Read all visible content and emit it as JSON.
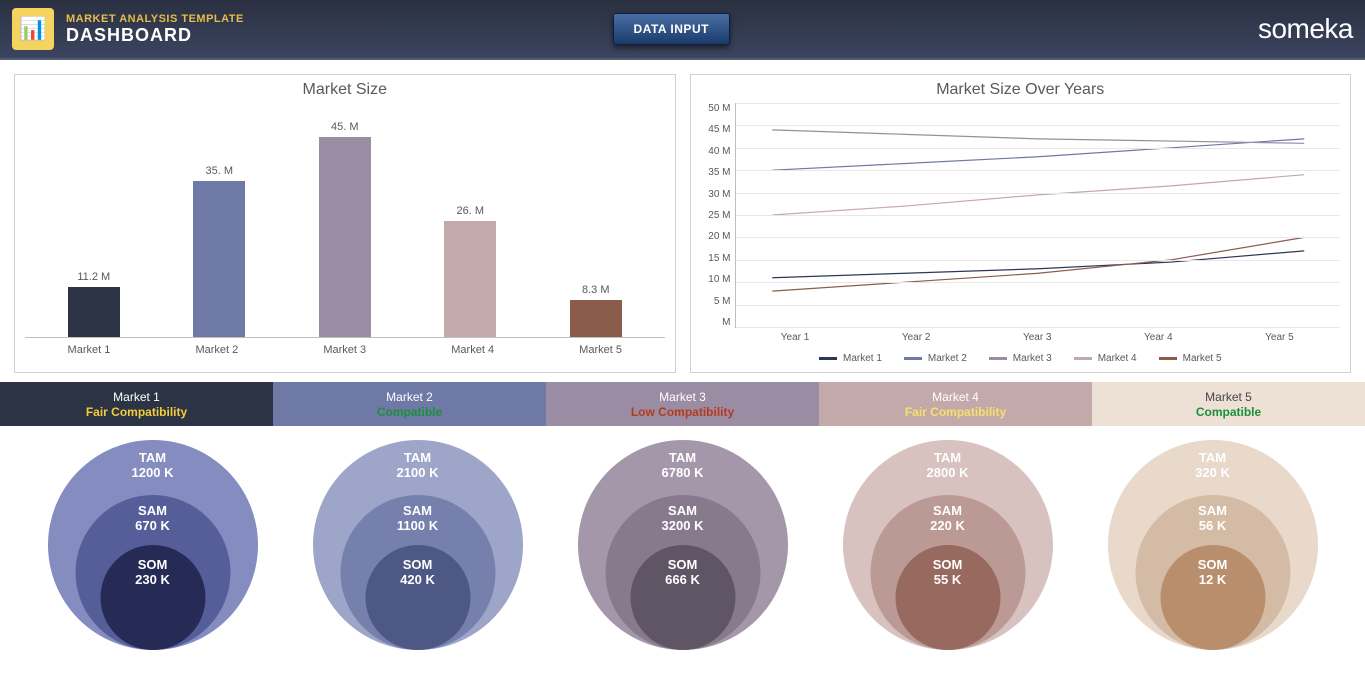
{
  "header": {
    "subtitle": "MARKET ANALYSIS TEMPLATE",
    "title": "DASHBOARD",
    "button_label": "DATA INPUT",
    "brand": "someka"
  },
  "bar_chart": {
    "title": "Market Size",
    "ymax": 45,
    "categories": [
      "Market 1",
      "Market 2",
      "Market 3",
      "Market 4",
      "Market 5"
    ],
    "values": [
      11.2,
      35,
      45,
      26,
      8.3
    ],
    "value_labels": [
      "11.2 M",
      "35. M",
      "45. M",
      "26. M",
      "8.3 M"
    ],
    "colors": [
      "#2b3344",
      "#6e7aa5",
      "#9a8ca3",
      "#c4a9ab",
      "#8b5c4c"
    ]
  },
  "line_chart": {
    "title": "Market Size Over Years",
    "x_labels": [
      "Year 1",
      "Year 2",
      "Year 3",
      "Year 4",
      "Year 5"
    ],
    "y_ticks": [
      "50 M",
      "45 M",
      "40 M",
      "35 M",
      "30 M",
      "25 M",
      "20 M",
      "15 M",
      "10 M",
      "5 M",
      "M"
    ],
    "ymax": 50,
    "series": [
      {
        "name": "Market 1",
        "color": "#2b3755",
        "values": [
          11,
          12,
          13,
          14.5,
          17
        ]
      },
      {
        "name": "Market 2",
        "color": "#6e7aa5",
        "values": [
          35,
          36.5,
          38,
          40,
          42
        ]
      },
      {
        "name": "Market 3",
        "color": "#9a8ca3",
        "values": [
          44,
          43,
          42,
          41.5,
          41
        ]
      },
      {
        "name": "Market 4",
        "color": "#c4a9ab",
        "values": [
          25,
          27,
          29.5,
          31.5,
          34
        ]
      },
      {
        "name": "Market 5",
        "color": "#8b5c4c",
        "values": [
          8,
          10,
          12,
          15,
          20
        ]
      }
    ]
  },
  "market_strip": [
    {
      "name": "Market 1",
      "bg": "#2b3344",
      "compat": "Fair Compatibility",
      "compat_color": "#f4cc3c"
    },
    {
      "name": "Market 2",
      "bg": "#6e7aa5",
      "compat": "Compatible",
      "compat_color": "#1b8f3b"
    },
    {
      "name": "Market 3",
      "bg": "#9a8ca3",
      "compat": "Low Compatibility",
      "compat_color": "#b43c1e"
    },
    {
      "name": "Market 4",
      "bg": "#c4a9ab",
      "compat": "Fair Compatibility",
      "compat_color": "#f4e06a"
    },
    {
      "name": "Market 5",
      "bg": "#ede1d6",
      "compat": "Compatible",
      "compat_color": "#1b8f3b",
      "name_color": "#444"
    }
  ],
  "tss": [
    {
      "tam": "1200 K",
      "sam": "670 K",
      "som": "230 K",
      "c_tam": "#848cc0",
      "c_sam": "#565e9a",
      "c_som": "#262b56"
    },
    {
      "tam": "2100 K",
      "sam": "1100 K",
      "som": "420 K",
      "c_tam": "#9da5c9",
      "c_sam": "#7580ad",
      "c_som": "#4d5884"
    },
    {
      "tam": "6780 K",
      "sam": "3200 K",
      "som": "666 K",
      "c_tam": "#a597aa",
      "c_sam": "#867a8c",
      "c_som": "#5f5564"
    },
    {
      "tam": "2800 K",
      "sam": "220 K",
      "som": "55 K",
      "c_tam": "#d7c2bf",
      "c_sam": "#bb9994",
      "c_som": "#97695f"
    },
    {
      "tam": "320 K",
      "sam": "56 K",
      "som": "12 K",
      "c_tam": "#e8d9cb",
      "c_sam": "#d4bba5",
      "c_som": "#b98e6d"
    }
  ],
  "tss_labels": {
    "tam": "TAM",
    "sam": "SAM",
    "som": "SOM"
  }
}
